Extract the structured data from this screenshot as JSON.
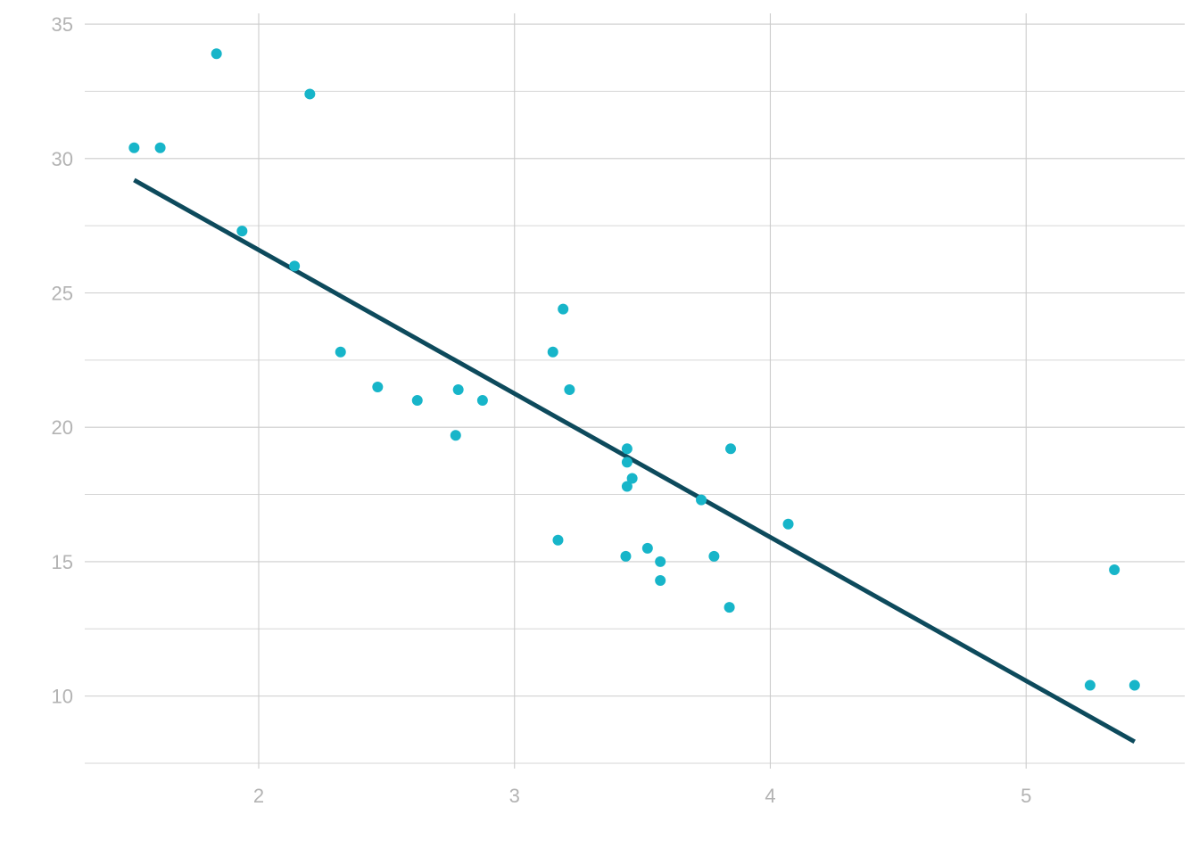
{
  "chart_data": {
    "type": "scatter",
    "title": "",
    "xlabel": "",
    "ylabel": "",
    "xlim": [
      1.32,
      5.62
    ],
    "ylim": [
      7.3,
      35.5
    ],
    "x_ticks": [
      2,
      3,
      4,
      5
    ],
    "x_tick_labels": [
      "2",
      "3",
      "4",
      "5"
    ],
    "y_ticks": [
      10,
      15,
      20,
      25,
      30,
      35
    ],
    "y_tick_labels": [
      "10",
      "15",
      "20",
      "25",
      "30",
      "35"
    ],
    "y_minor_ticks": [
      7.5,
      12.5,
      17.5,
      22.5,
      27.5,
      32.5
    ],
    "grid": true,
    "legend": "none",
    "colors": {
      "points": "#17b5c9",
      "trend_line": "#0d4a5c",
      "grid": "#cccccc",
      "tick_text": "#b3b3b3"
    },
    "points": [
      {
        "x": 1.513,
        "y": 30.4
      },
      {
        "x": 1.615,
        "y": 30.4
      },
      {
        "x": 1.835,
        "y": 33.9
      },
      {
        "x": 1.935,
        "y": 27.3
      },
      {
        "x": 2.14,
        "y": 26.0
      },
      {
        "x": 2.2,
        "y": 32.4
      },
      {
        "x": 2.32,
        "y": 22.8
      },
      {
        "x": 2.465,
        "y": 21.5
      },
      {
        "x": 2.62,
        "y": 21.0
      },
      {
        "x": 2.77,
        "y": 19.7
      },
      {
        "x": 2.78,
        "y": 21.4
      },
      {
        "x": 2.875,
        "y": 21.0
      },
      {
        "x": 3.15,
        "y": 22.8
      },
      {
        "x": 3.17,
        "y": 15.8
      },
      {
        "x": 3.19,
        "y": 24.4
      },
      {
        "x": 3.215,
        "y": 21.4
      },
      {
        "x": 3.435,
        "y": 15.2
      },
      {
        "x": 3.44,
        "y": 18.7
      },
      {
        "x": 3.44,
        "y": 19.2
      },
      {
        "x": 3.44,
        "y": 17.8
      },
      {
        "x": 3.46,
        "y": 18.1
      },
      {
        "x": 3.52,
        "y": 15.5
      },
      {
        "x": 3.57,
        "y": 14.3
      },
      {
        "x": 3.57,
        "y": 15.0
      },
      {
        "x": 3.73,
        "y": 17.3
      },
      {
        "x": 3.78,
        "y": 15.2
      },
      {
        "x": 3.84,
        "y": 13.3
      },
      {
        "x": 3.845,
        "y": 19.2
      },
      {
        "x": 4.07,
        "y": 16.4
      },
      {
        "x": 5.25,
        "y": 10.4
      },
      {
        "x": 5.345,
        "y": 14.7
      },
      {
        "x": 5.424,
        "y": 10.4
      }
    ],
    "trend_line": {
      "x": [
        1.513,
        5.424
      ],
      "y": [
        29.2,
        8.3
      ]
    }
  }
}
